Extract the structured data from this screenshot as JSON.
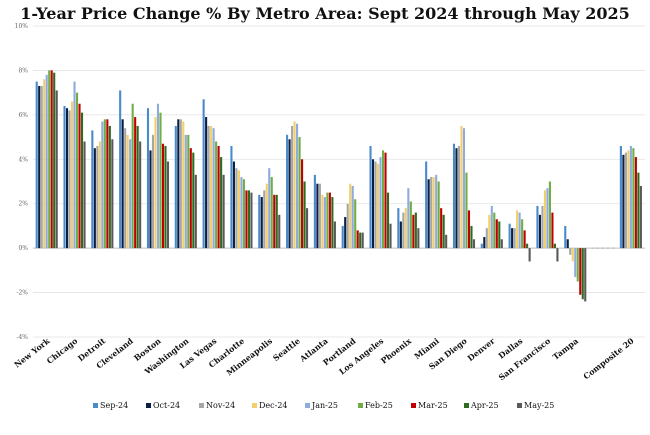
{
  "chart_data": {
    "type": "bar",
    "title": "1-Year Price Change % By Metro Area: Sept 2024 through May 2025",
    "xlabel": "",
    "ylabel": "",
    "ylim": [
      -4,
      10
    ],
    "yticks": [
      "-4%",
      "-2%",
      "0%",
      "2%",
      "4%",
      "6%",
      "8%",
      "10%"
    ],
    "grid": true,
    "legend_position": "bottom",
    "categories": [
      "New York",
      "Chicago",
      "Detroit",
      "Cleveland",
      "Boston",
      "Washington",
      "Las Vegas",
      "Charlotte",
      "Minneapolis",
      "Seattle",
      "Atlanta",
      "Portland",
      "Los Angeles",
      "Phoenix",
      "Miami",
      "San Diego",
      "Denver",
      "Dallas",
      "San Francisco",
      "Tampa",
      "",
      "Composite 20"
    ],
    "series": [
      {
        "name": "Sep-24",
        "color": "#4a8ac9",
        "values": [
          7.5,
          6.4,
          5.3,
          7.1,
          6.3,
          5.5,
          6.7,
          4.6,
          2.4,
          5.1,
          3.3,
          1.0,
          4.6,
          1.8,
          3.9,
          4.7,
          0.2,
          1.1,
          1.9,
          1.0,
          null,
          4.6
        ]
      },
      {
        "name": "Oct-24",
        "color": "#0b1f44",
        "values": [
          7.3,
          6.3,
          4.5,
          5.8,
          4.4,
          5.8,
          5.9,
          3.9,
          2.3,
          4.9,
          2.9,
          1.4,
          4.0,
          1.2,
          3.1,
          4.5,
          0.5,
          0.9,
          1.5,
          0.4,
          null,
          4.2
        ]
      },
      {
        "name": "Nov-24",
        "color": "#a6a6a6",
        "values": [
          7.3,
          6.2,
          4.6,
          5.4,
          5.1,
          5.8,
          5.5,
          3.6,
          2.6,
          5.5,
          2.9,
          2.0,
          3.9,
          1.6,
          3.2,
          4.6,
          0.9,
          0.9,
          1.9,
          -0.3,
          null,
          4.3
        ]
      },
      {
        "name": "Dec-24",
        "color": "#f2cf6b",
        "values": [
          7.6,
          6.6,
          4.8,
          5.1,
          5.9,
          5.7,
          5.5,
          3.5,
          2.9,
          5.7,
          2.4,
          2.9,
          3.8,
          1.8,
          3.2,
          5.5,
          1.5,
          1.7,
          2.6,
          -0.6,
          null,
          4.4
        ]
      },
      {
        "name": "Jan-25",
        "color": "#8faadc",
        "values": [
          7.8,
          7.5,
          5.7,
          4.9,
          6.5,
          5.1,
          5.4,
          3.2,
          3.6,
          5.6,
          2.3,
          2.8,
          4.1,
          2.7,
          3.3,
          5.4,
          1.9,
          1.6,
          2.7,
          -1.3,
          null,
          4.6
        ]
      },
      {
        "name": "Feb-25",
        "color": "#70ad47",
        "values": [
          8.0,
          7.0,
          5.8,
          6.5,
          6.1,
          5.1,
          4.8,
          3.1,
          3.2,
          5.0,
          2.5,
          2.2,
          4.4,
          2.1,
          3.0,
          3.4,
          1.6,
          1.3,
          3.0,
          -1.5,
          null,
          4.5
        ]
      },
      {
        "name": "Mar-25",
        "color": "#c00000",
        "values": [
          8.0,
          6.5,
          5.8,
          5.9,
          4.7,
          4.5,
          4.6,
          2.6,
          2.4,
          4.0,
          2.5,
          0.8,
          4.3,
          1.5,
          1.8,
          1.7,
          1.3,
          0.8,
          1.6,
          -2.1,
          null,
          4.1
        ]
      },
      {
        "name": "Apr-25",
        "color": "#2e6b1f",
        "values": [
          7.9,
          6.1,
          5.5,
          5.5,
          4.6,
          4.3,
          4.1,
          2.6,
          2.4,
          3.0,
          2.3,
          0.7,
          2.5,
          1.6,
          1.5,
          1.0,
          1.2,
          0.2,
          0.2,
          -2.3,
          null,
          3.4
        ]
      },
      {
        "name": "May-25",
        "color": "#595959",
        "values": [
          7.1,
          4.8,
          4.9,
          4.8,
          3.9,
          3.3,
          3.3,
          2.5,
          1.5,
          1.8,
          1.2,
          0.7,
          1.1,
          0.9,
          0.6,
          0.4,
          0.4,
          -0.6,
          -0.6,
          -2.4,
          null,
          2.8
        ]
      }
    ]
  }
}
